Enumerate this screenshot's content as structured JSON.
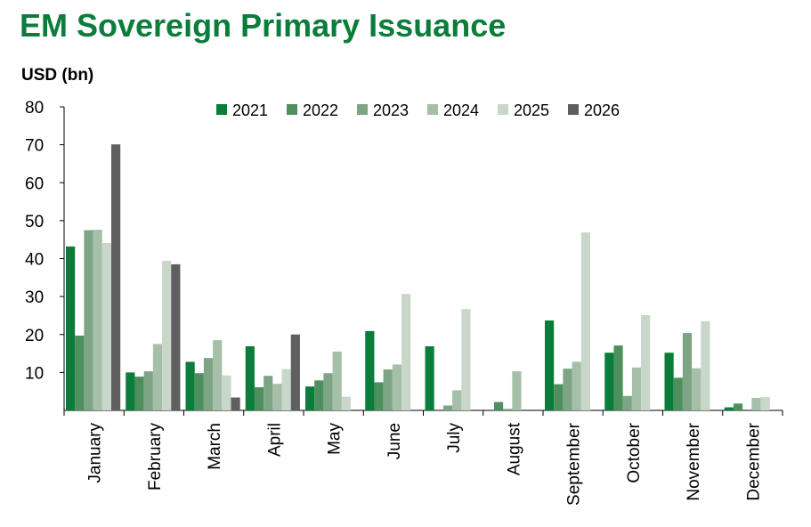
{
  "chart_data": {
    "type": "bar",
    "title": "EM Sovereign Primary Issuance",
    "ylabel": "USD (bn)",
    "xlabel": "",
    "ylim": [
      0,
      80
    ],
    "yticks": [
      10,
      20,
      30,
      40,
      50,
      60,
      70,
      80
    ],
    "legend_position": "top",
    "categories": [
      "January",
      "February",
      "March",
      "April",
      "May",
      "June",
      "July",
      "August",
      "September",
      "October",
      "November",
      "December"
    ],
    "series": [
      {
        "name": "2021",
        "color": "#0a7d3b",
        "values": [
          43.2,
          10.0,
          12.8,
          16.9,
          6.3,
          20.9,
          16.9,
          0.0,
          23.7,
          15.2,
          15.2,
          0.8
        ]
      },
      {
        "name": "2022",
        "color": "#4e8f5e",
        "values": [
          19.7,
          8.9,
          9.8,
          6.1,
          7.9,
          7.4,
          0.0,
          2.2,
          6.9,
          17.1,
          8.6,
          1.8
        ]
      },
      {
        "name": "2023",
        "color": "#7da585",
        "values": [
          47.5,
          10.3,
          13.8,
          9.1,
          9.8,
          10.8,
          1.3,
          0.4,
          11.0,
          3.8,
          20.4,
          0.0
        ]
      },
      {
        "name": "2024",
        "color": "#a5bfa9",
        "values": [
          47.6,
          17.5,
          18.5,
          7.0,
          15.5,
          12.1,
          5.3,
          10.3,
          12.8,
          11.3,
          11.1,
          3.3
        ]
      },
      {
        "name": "2025",
        "color": "#c9d6ca",
        "values": [
          44.1,
          39.4,
          9.2,
          10.9,
          3.6,
          30.7,
          26.7,
          0.0,
          46.9,
          25.1,
          23.5,
          3.5
        ]
      },
      {
        "name": "2026",
        "color": "#5f5f5f",
        "values": [
          70.1,
          38.5,
          3.4,
          20.0,
          0.0,
          0.0,
          0.0,
          0.0,
          0.0,
          0.0,
          0.0,
          0.0
        ]
      }
    ]
  }
}
